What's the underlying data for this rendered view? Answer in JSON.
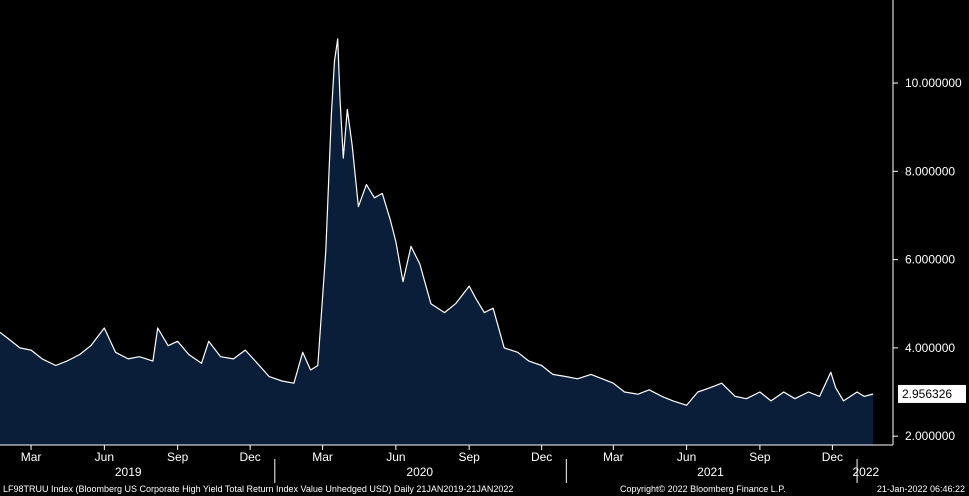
{
  "chart_data": {
    "type": "area",
    "series": [
      {
        "x": [
          "2019-01-21",
          "2019-02-01",
          "2019-02-15",
          "2019-03-01",
          "2019-03-15",
          "2019-04-01",
          "2019-04-15",
          "2019-05-01",
          "2019-05-15",
          "2019-06-01",
          "2019-06-15",
          "2019-07-01",
          "2019-07-15",
          "2019-08-01",
          "2019-08-07",
          "2019-08-20",
          "2019-09-01",
          "2019-09-15",
          "2019-10-01",
          "2019-10-10",
          "2019-10-25",
          "2019-11-10",
          "2019-11-25",
          "2019-12-10",
          "2019-12-25",
          "2020-01-10",
          "2020-01-25",
          "2020-02-05",
          "2020-02-15",
          "2020-02-24",
          "2020-03-05",
          "2020-03-12",
          "2020-03-16",
          "2020-03-20",
          "2020-03-23",
          "2020-03-27",
          "2020-04-01",
          "2020-04-07",
          "2020-04-15",
          "2020-04-25",
          "2020-05-05",
          "2020-05-15",
          "2020-05-25",
          "2020-06-01",
          "2020-06-10",
          "2020-06-20",
          "2020-07-01",
          "2020-07-15",
          "2020-08-01",
          "2020-08-15",
          "2020-09-01",
          "2020-09-10",
          "2020-09-20",
          "2020-10-01",
          "2020-10-15",
          "2020-11-01",
          "2020-11-15",
          "2020-12-01",
          "2020-12-15",
          "2021-01-01",
          "2021-01-15",
          "2021-02-01",
          "2021-02-15",
          "2021-03-01",
          "2021-03-15",
          "2021-04-01",
          "2021-04-15",
          "2021-05-01",
          "2021-05-15",
          "2021-06-01",
          "2021-06-15",
          "2021-07-01",
          "2021-07-15",
          "2021-08-01",
          "2021-08-15",
          "2021-09-01",
          "2021-09-15",
          "2021-10-01",
          "2021-10-15",
          "2021-11-01",
          "2021-11-15",
          "2021-11-29",
          "2021-12-05",
          "2021-12-15",
          "2022-01-01",
          "2022-01-10",
          "2022-01-21"
        ],
        "values": [
          4.35,
          4.2,
          4.0,
          3.95,
          3.75,
          3.6,
          3.7,
          3.85,
          4.05,
          4.45,
          3.9,
          3.75,
          3.8,
          3.7,
          4.45,
          4.05,
          4.15,
          3.85,
          3.65,
          4.15,
          3.8,
          3.75,
          3.95,
          3.65,
          3.35,
          3.25,
          3.2,
          3.9,
          3.5,
          3.6,
          6.2,
          9.3,
          10.5,
          11.0,
          9.6,
          8.3,
          9.4,
          8.6,
          7.2,
          7.7,
          7.4,
          7.5,
          6.9,
          6.4,
          5.5,
          6.3,
          5.9,
          5.0,
          4.8,
          5.0,
          5.4,
          5.1,
          4.8,
          4.9,
          4.0,
          3.9,
          3.7,
          3.6,
          3.4,
          3.35,
          3.3,
          3.4,
          3.3,
          3.2,
          3.0,
          2.95,
          3.05,
          2.9,
          2.8,
          2.7,
          3.0,
          3.1,
          3.2,
          2.9,
          2.85,
          3.0,
          2.8,
          3.0,
          2.85,
          3.0,
          2.9,
          3.45,
          3.1,
          2.8,
          3.0,
          2.9,
          2.956326
        ]
      }
    ],
    "last_value_label": "2.956326",
    "xlim": [
      "2019-01-21",
      "2022-01-21"
    ],
    "ylim": [
      1.8,
      11.7
    ],
    "y_ticks": [
      2,
      4,
      6,
      8,
      10
    ],
    "y_tick_labels": [
      "2.000000",
      "4.000000",
      "6.000000",
      "8.000000",
      "10.000000"
    ],
    "x_month_ticks": [
      {
        "date": "2019-03-01",
        "label": "Mar"
      },
      {
        "date": "2019-06-01",
        "label": "Jun"
      },
      {
        "date": "2019-09-01",
        "label": "Sep"
      },
      {
        "date": "2019-12-01",
        "label": "Dec"
      },
      {
        "date": "2020-03-01",
        "label": "Mar"
      },
      {
        "date": "2020-06-01",
        "label": "Jun"
      },
      {
        "date": "2020-09-01",
        "label": "Sep"
      },
      {
        "date": "2020-12-01",
        "label": "Dec"
      },
      {
        "date": "2021-03-01",
        "label": "Mar"
      },
      {
        "date": "2021-06-01",
        "label": "Jun"
      },
      {
        "date": "2021-09-01",
        "label": "Sep"
      },
      {
        "date": "2021-12-01",
        "label": "Dec"
      }
    ],
    "x_year_labels": [
      {
        "year": "2019",
        "mid": "2019-07-01"
      },
      {
        "year": "2020",
        "mid": "2020-07-01"
      },
      {
        "year": "2021",
        "mid": "2021-07-01"
      },
      {
        "year": "2022",
        "mid": "2022-01-12"
      }
    ],
    "year_boundaries": [
      "2020-01-01",
      "2021-01-01",
      "2022-01-01"
    ],
    "grid": false
  },
  "colors": {
    "background": "#000000",
    "area_fill": "#0a1e3a",
    "line": "#ffffff",
    "text": "#ffffff"
  },
  "footer": {
    "left": "LF98TRUU Index (Bloomberg US Corporate High Yield Total Return Index Value Unhedged USD)  Daily 21JAN2019-21JAN2022",
    "middle": "Copyright© 2022 Bloomberg Finance L.P.",
    "right": "21-Jan-2022 06:46:22"
  }
}
